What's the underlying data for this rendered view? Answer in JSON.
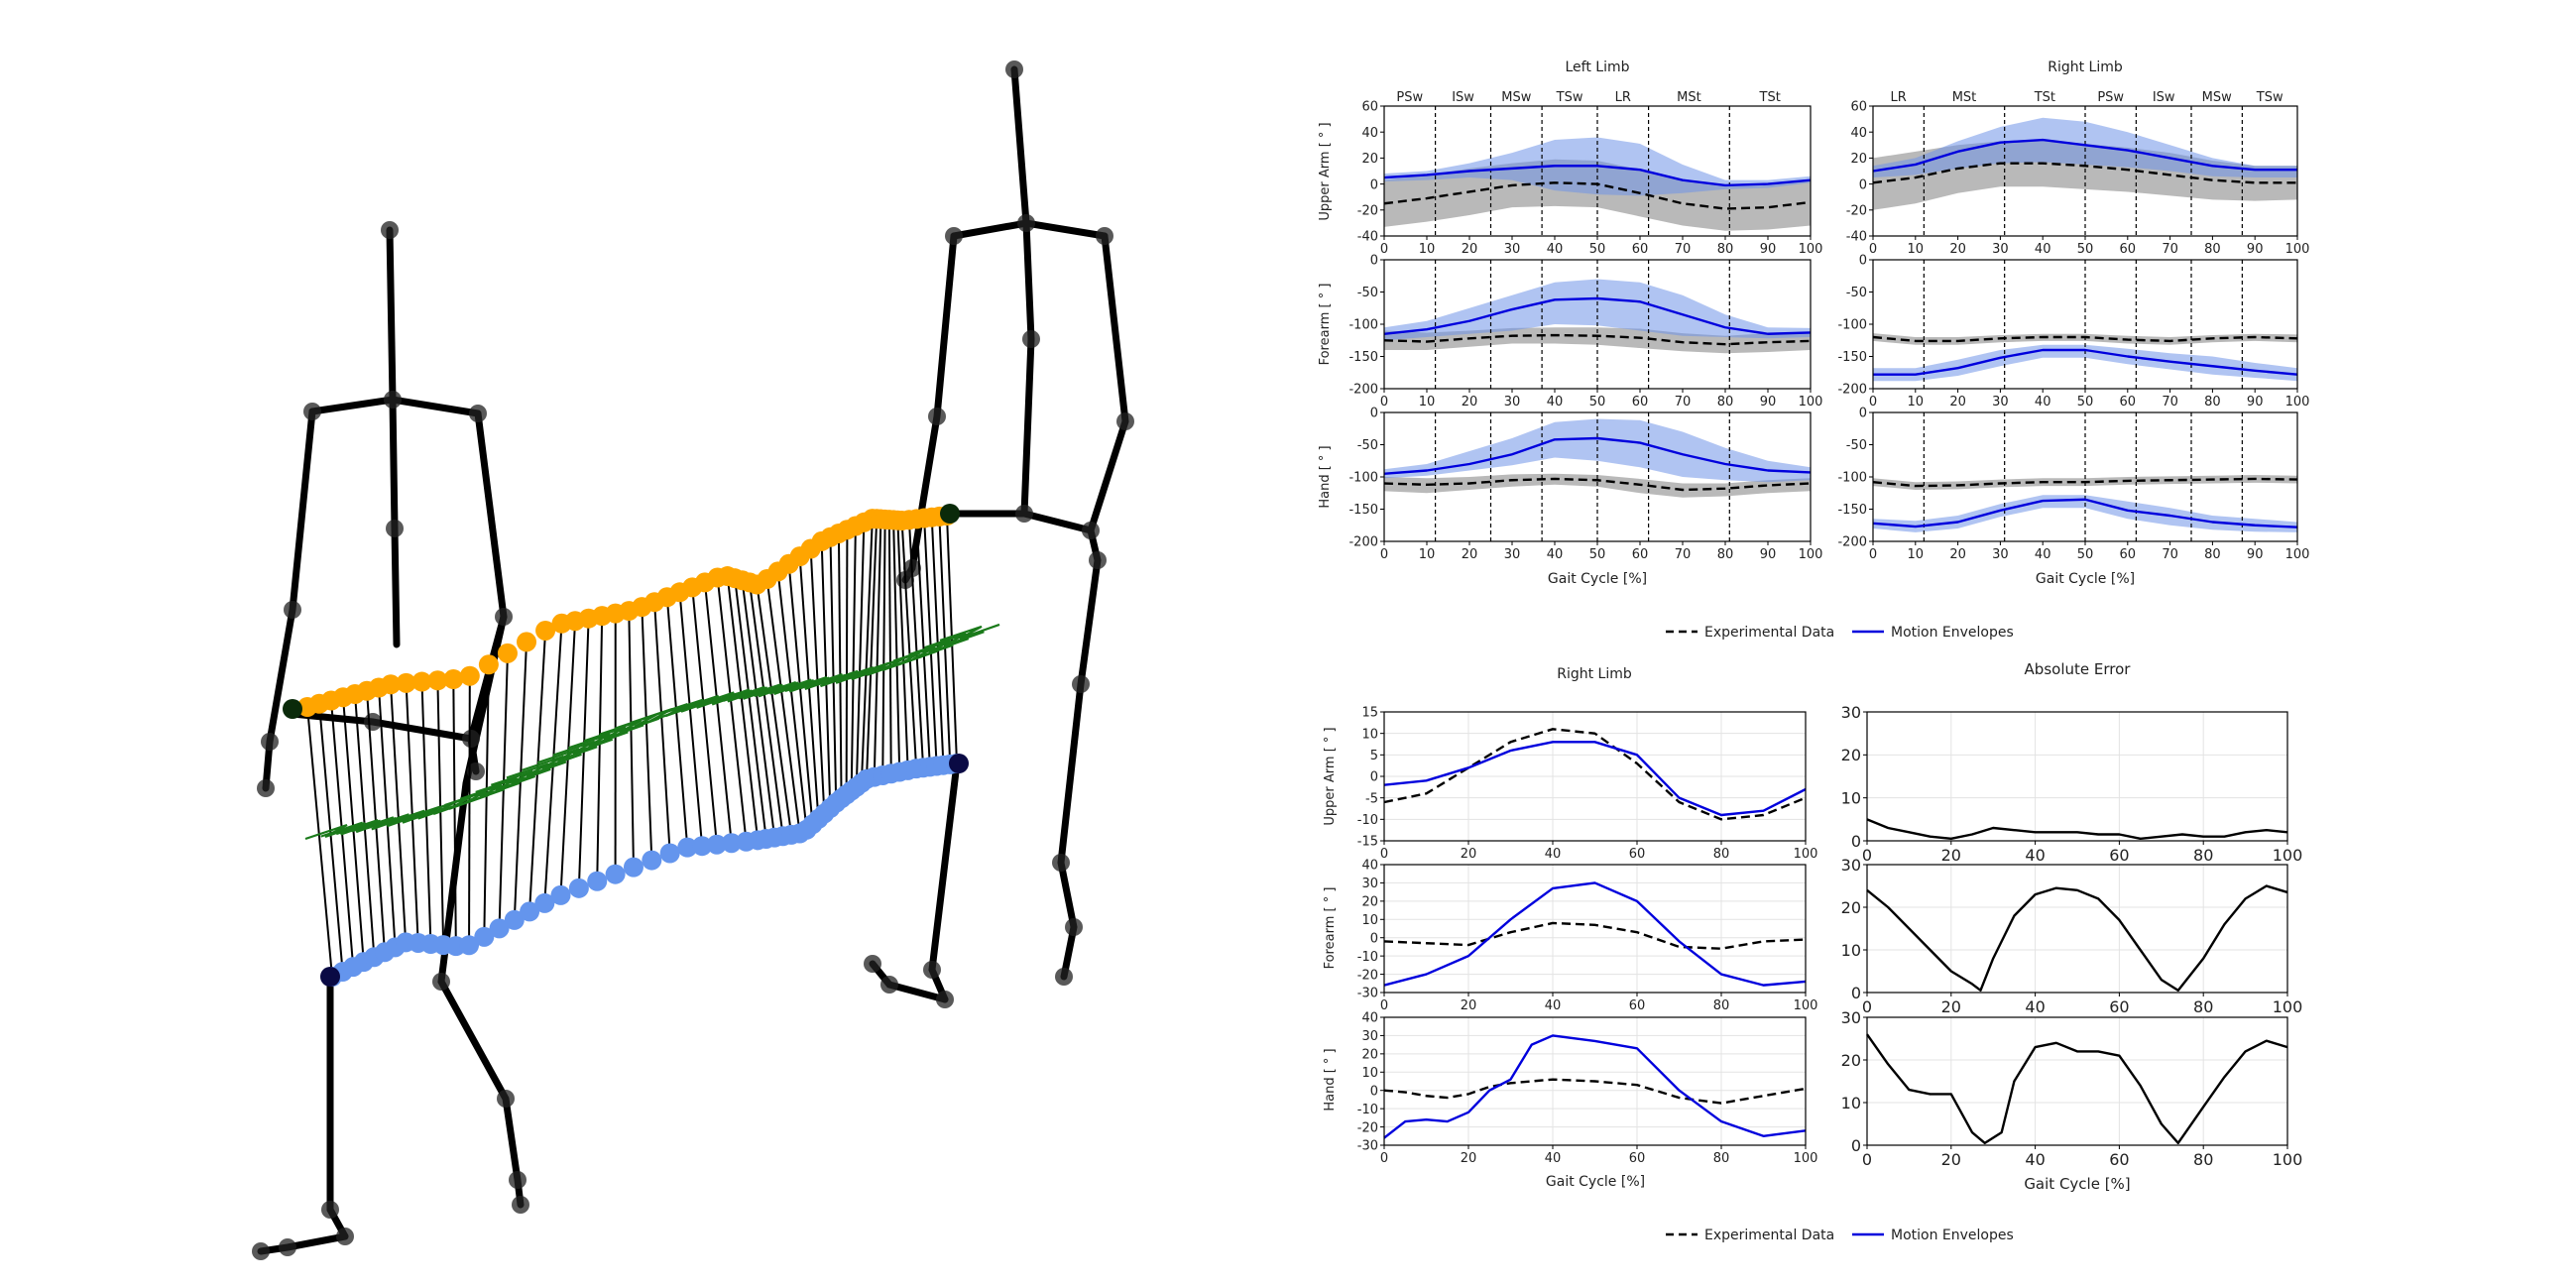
{
  "colors": {
    "experimental": "#000000",
    "envelope_line": "#0000dd",
    "envelope_band": "#6f93e8",
    "experimental_band": "#8a8a8a",
    "skeleton": "#000000",
    "upper_markers": "#ffa500",
    "lower_markers": "#6495ed",
    "connector_surface": "#1a7a1a",
    "grid": "#e3e3e3"
  },
  "top_panel": {
    "left_title": "Left Limb",
    "right_title": "Right Limb",
    "left_phases": {
      "labels": [
        "PSw",
        "ISw",
        "MSw",
        "TSw",
        "LR",
        "MSt",
        "TSt"
      ],
      "boundaries": [
        12,
        25,
        37,
        50,
        62,
        81
      ]
    },
    "right_phases": {
      "labels": [
        "LR",
        "MSt",
        "TSt",
        "PSw",
        "ISw",
        "MSw",
        "TSw"
      ],
      "boundaries": [
        12,
        31,
        50,
        62,
        75,
        87
      ]
    },
    "xlabel": "Gait Cycle [%]",
    "xlim": [
      0,
      100
    ],
    "xticks": [
      0,
      10,
      20,
      30,
      40,
      50,
      60,
      70,
      80,
      90,
      100
    ],
    "rows": [
      {
        "ylabel": "Upper Arm [ ° ]",
        "ylim": [
          -40,
          60
        ],
        "yticks": [
          -40,
          -20,
          0,
          20,
          40,
          60
        ]
      },
      {
        "ylabel": "Forearm [ ° ]",
        "ylim": [
          -200,
          0
        ],
        "yticks": [
          -200,
          -150,
          -100,
          -50,
          0
        ]
      },
      {
        "ylabel": "Hand [ ° ]",
        "ylim": [
          -200,
          0
        ],
        "yticks": [
          -200,
          -150,
          -100,
          -50,
          0
        ]
      }
    ],
    "legend": {
      "experimental": "Experimental Data",
      "envelopes": "Motion Envelopes"
    }
  },
  "bottom_panel": {
    "left_title": "Right Limb",
    "right_title": "Absolute Error",
    "xlabel": "Gait Cycle [%]",
    "xlim": [
      0,
      100
    ],
    "xticks": [
      0,
      20,
      40,
      60,
      80,
      100
    ],
    "rows": [
      {
        "ylabel": "Upper Arm [ ° ]",
        "ylim": [
          -15,
          15
        ],
        "yticks": [
          -15,
          -10,
          -5,
          0,
          5,
          10,
          15
        ]
      },
      {
        "ylabel": "Forearm [ ° ]",
        "ylim": [
          -30,
          40
        ],
        "yticks": [
          -30,
          -20,
          -10,
          0,
          10,
          20,
          30,
          40
        ]
      },
      {
        "ylabel": "Hand [ ° ]",
        "ylim": [
          -30,
          40
        ],
        "yticks": [
          -30,
          -20,
          -10,
          0,
          10,
          20,
          30,
          40
        ]
      }
    ],
    "error_ylim": [
      0,
      30
    ],
    "error_yticks": [
      0,
      10,
      20,
      30
    ],
    "legend": {
      "experimental": "Experimental Data",
      "envelopes": "Motion Envelopes"
    }
  },
  "chart_data": [
    {
      "type": "line",
      "title": "Left Limb",
      "ylabel": "Upper Arm [ ° ]",
      "xlabel": "",
      "ylim": [
        -40,
        60
      ],
      "x": [
        0,
        10,
        20,
        30,
        40,
        50,
        60,
        70,
        80,
        90,
        100
      ],
      "series": [
        {
          "name": "Experimental Data",
          "values": [
            -15,
            -11,
            -6,
            -1,
            1,
            0,
            -7,
            -15,
            -19,
            -18,
            -14
          ],
          "band_lower": [
            -33,
            -29,
            -24,
            -18,
            -17,
            -18,
            -25,
            -32,
            -36,
            -35,
            -32
          ],
          "band_upper": [
            3,
            7,
            12,
            16,
            19,
            18,
            11,
            2,
            -2,
            -1,
            4
          ]
        },
        {
          "name": "Motion Envelopes",
          "values": [
            5,
            7,
            10,
            12,
            14,
            14,
            11,
            3,
            -1,
            0,
            3
          ],
          "band_lower": [
            2,
            3,
            5,
            3,
            -5,
            -8,
            -9,
            -7,
            -4,
            -3,
            1
          ],
          "band_upper": [
            8,
            10,
            16,
            24,
            34,
            36,
            31,
            15,
            3,
            3,
            6
          ]
        }
      ]
    },
    {
      "type": "line",
      "title": "Left Limb",
      "ylabel": "Forearm [ ° ]",
      "xlabel": "",
      "ylim": [
        -200,
        0
      ],
      "x": [
        0,
        10,
        20,
        30,
        40,
        50,
        60,
        70,
        80,
        90,
        100
      ],
      "series": [
        {
          "name": "Experimental Data",
          "values": [
            -125,
            -127,
            -122,
            -118,
            -117,
            -118,
            -121,
            -128,
            -131,
            -128,
            -126
          ],
          "band_lower": [
            -140,
            -140,
            -135,
            -130,
            -130,
            -132,
            -137,
            -142,
            -145,
            -143,
            -140
          ],
          "band_upper": [
            -110,
            -113,
            -110,
            -106,
            -105,
            -105,
            -107,
            -114,
            -118,
            -114,
            -112
          ]
        },
        {
          "name": "Motion Envelopes",
          "values": [
            -115,
            -108,
            -95,
            -77,
            -62,
            -60,
            -65,
            -85,
            -105,
            -115,
            -113
          ],
          "band_lower": [
            -125,
            -120,
            -115,
            -110,
            -100,
            -102,
            -110,
            -118,
            -120,
            -122,
            -120
          ],
          "band_upper": [
            -105,
            -95,
            -75,
            -55,
            -35,
            -30,
            -35,
            -55,
            -85,
            -105,
            -106
          ]
        }
      ]
    },
    {
      "type": "line",
      "title": "Left Limb",
      "ylabel": "Hand [ ° ]",
      "xlabel": "Gait Cycle [%]",
      "ylim": [
        -200,
        0
      ],
      "x": [
        0,
        10,
        20,
        30,
        40,
        50,
        60,
        70,
        80,
        90,
        100
      ],
      "series": [
        {
          "name": "Experimental Data",
          "values": [
            -110,
            -112,
            -110,
            -105,
            -103,
            -105,
            -112,
            -120,
            -118,
            -113,
            -110
          ],
          "band_lower": [
            -100,
            -102,
            -100,
            -96,
            -95,
            -97,
            -103,
            -110,
            -110,
            -105,
            -102
          ],
          "band_upper": [
            -122,
            -125,
            -120,
            -115,
            -112,
            -115,
            -125,
            -132,
            -130,
            -125,
            -122
          ]
        },
        {
          "name": "Motion Envelopes",
          "values": [
            -95,
            -90,
            -80,
            -65,
            -42,
            -40,
            -47,
            -65,
            -80,
            -90,
            -93
          ],
          "band_lower": [
            -102,
            -98,
            -90,
            -82,
            -70,
            -75,
            -85,
            -100,
            -105,
            -108,
            -105
          ],
          "band_upper": [
            -88,
            -80,
            -60,
            -40,
            -15,
            -10,
            -12,
            -30,
            -55,
            -75,
            -85
          ]
        }
      ]
    },
    {
      "type": "line",
      "title": "Right Limb",
      "ylabel": "Upper Arm [ ° ]",
      "xlabel": "",
      "ylim": [
        -40,
        60
      ],
      "x": [
        0,
        10,
        20,
        30,
        40,
        50,
        60,
        70,
        80,
        90,
        100
      ],
      "series": [
        {
          "name": "Experimental Data",
          "values": [
            1,
            5,
            12,
            16,
            16,
            14,
            11,
            7,
            3,
            1,
            1
          ],
          "band_lower": [
            -20,
            -15,
            -7,
            -2,
            -2,
            -4,
            -6,
            -9,
            -12,
            -13,
            -12
          ],
          "band_upper": [
            20,
            25,
            30,
            33,
            33,
            31,
            28,
            24,
            18,
            14,
            14
          ]
        },
        {
          "name": "Motion Envelopes",
          "values": [
            10,
            15,
            25,
            32,
            34,
            30,
            26,
            20,
            14,
            11,
            11
          ],
          "band_lower": [
            5,
            7,
            12,
            16,
            17,
            15,
            13,
            10,
            6,
            5,
            5
          ],
          "band_upper": [
            14,
            20,
            33,
            44,
            51,
            48,
            40,
            30,
            20,
            14,
            14
          ]
        }
      ]
    },
    {
      "type": "line",
      "title": "Right Limb",
      "ylabel": "Forearm [ ° ]",
      "xlabel": "",
      "ylim": [
        -200,
        0
      ],
      "x": [
        0,
        10,
        20,
        30,
        40,
        50,
        60,
        70,
        80,
        90,
        100
      ],
      "series": [
        {
          "name": "Experimental Data",
          "values": [
            -120,
            -126,
            -126,
            -122,
            -120,
            -120,
            -124,
            -126,
            -122,
            -120,
            -122
          ],
          "band_lower": [
            -114,
            -120,
            -120,
            -117,
            -115,
            -115,
            -118,
            -120,
            -117,
            -115,
            -116
          ],
          "band_upper": [
            -126,
            -132,
            -132,
            -128,
            -126,
            -126,
            -130,
            -132,
            -128,
            -126,
            -128
          ]
        },
        {
          "name": "Motion Envelopes",
          "values": [
            -178,
            -178,
            -168,
            -152,
            -140,
            -140,
            -150,
            -158,
            -165,
            -172,
            -178
          ],
          "band_lower": [
            -168,
            -168,
            -155,
            -140,
            -132,
            -132,
            -138,
            -145,
            -150,
            -160,
            -168
          ],
          "band_upper": [
            -188,
            -188,
            -180,
            -165,
            -152,
            -152,
            -162,
            -170,
            -178,
            -183,
            -188
          ]
        }
      ]
    },
    {
      "type": "line",
      "title": "Right Limb",
      "ylabel": "Hand [ ° ]",
      "xlabel": "Gait Cycle [%]",
      "ylim": [
        -200,
        0
      ],
      "x": [
        0,
        10,
        20,
        30,
        40,
        50,
        60,
        70,
        80,
        90,
        100
      ],
      "series": [
        {
          "name": "Experimental Data",
          "values": [
            -108,
            -114,
            -113,
            -110,
            -108,
            -108,
            -106,
            -105,
            -104,
            -103,
            -104
          ],
          "band_lower": [
            -102,
            -108,
            -107,
            -104,
            -102,
            -102,
            -100,
            -99,
            -98,
            -97,
            -98
          ],
          "band_upper": [
            -114,
            -120,
            -119,
            -116,
            -114,
            -114,
            -112,
            -111,
            -110,
            -109,
            -110
          ]
        },
        {
          "name": "Motion Envelopes",
          "values": [
            -172,
            -177,
            -170,
            -152,
            -137,
            -135,
            -152,
            -160,
            -170,
            -175,
            -178
          ],
          "band_lower": [
            -165,
            -168,
            -160,
            -142,
            -128,
            -128,
            -138,
            -148,
            -160,
            -165,
            -170
          ],
          "band_upper": [
            -180,
            -186,
            -180,
            -162,
            -148,
            -148,
            -165,
            -175,
            -182,
            -185,
            -186
          ]
        }
      ]
    },
    {
      "type": "line",
      "title": "Right Limb",
      "ylabel": "Upper Arm [ ° ]",
      "xlabel": "",
      "ylim": [
        -15,
        15
      ],
      "x": [
        0,
        10,
        20,
        30,
        40,
        50,
        60,
        70,
        80,
        90,
        100
      ],
      "series": [
        {
          "name": "Experimental Data",
          "values": [
            -6,
            -4,
            2,
            8,
            11,
            10,
            3,
            -6,
            -10,
            -9,
            -5
          ]
        },
        {
          "name": "Motion Envelopes",
          "values": [
            -2,
            -1,
            2,
            6,
            8,
            8,
            5,
            -5,
            -9,
            -8,
            -3
          ]
        }
      ]
    },
    {
      "type": "line",
      "title": "Right Limb",
      "ylabel": "Forearm [ ° ]",
      "xlabel": "",
      "ylim": [
        -30,
        40
      ],
      "x": [
        0,
        10,
        20,
        30,
        40,
        50,
        60,
        70,
        80,
        90,
        100
      ],
      "series": [
        {
          "name": "Experimental Data",
          "values": [
            -2,
            -3,
            -4,
            3,
            8,
            7,
            3,
            -5,
            -6,
            -2,
            -1
          ]
        },
        {
          "name": "Motion Envelopes",
          "values": [
            -26,
            -20,
            -10,
            10,
            27,
            30,
            20,
            -2,
            -20,
            -26,
            -24
          ]
        }
      ]
    },
    {
      "type": "line",
      "title": "Right Limb",
      "ylabel": "Hand [ ° ]",
      "xlabel": "Gait Cycle [%]",
      "ylim": [
        -30,
        40
      ],
      "x": [
        0,
        5,
        10,
        15,
        20,
        25,
        30,
        35,
        40,
        50,
        60,
        70,
        80,
        90,
        100
      ],
      "series": [
        {
          "name": "Experimental Data",
          "values": [
            0,
            -1,
            -3,
            -4,
            -2,
            2,
            4,
            5,
            6,
            5,
            3,
            -4,
            -7,
            -3,
            1
          ]
        },
        {
          "name": "Motion Envelopes",
          "values": [
            -26,
            -17,
            -16,
            -17,
            -12,
            0,
            6,
            25,
            30,
            27,
            23,
            0,
            -17,
            -25,
            -22
          ]
        }
      ]
    },
    {
      "type": "line",
      "title": "Absolute Error",
      "ylabel": "",
      "xlabel": "",
      "ylim": [
        0,
        30
      ],
      "x": [
        0,
        5,
        10,
        15,
        20,
        25,
        30,
        35,
        40,
        45,
        50,
        55,
        60,
        65,
        70,
        75,
        80,
        85,
        90,
        95,
        100
      ],
      "series": [
        {
          "name": "",
          "values": [
            5,
            3,
            2,
            1,
            0.5,
            1.5,
            3,
            2.5,
            2,
            2,
            2,
            1.5,
            1.5,
            0.5,
            1,
            1.5,
            1,
            1,
            2,
            2.5,
            2
          ]
        }
      ]
    },
    {
      "type": "line",
      "title": "Absolute Error",
      "ylabel": "",
      "xlabel": "",
      "ylim": [
        0,
        30
      ],
      "x": [
        0,
        5,
        10,
        15,
        20,
        25,
        27,
        30,
        35,
        40,
        45,
        50,
        55,
        60,
        65,
        70,
        74,
        80,
        85,
        90,
        95,
        100
      ],
      "series": [
        {
          "name": "",
          "values": [
            24,
            20,
            15,
            10,
            5,
            2,
            0.5,
            8,
            18,
            23,
            24.5,
            24,
            22,
            17,
            10,
            3,
            0.5,
            8,
            16,
            22,
            25,
            23.5
          ]
        }
      ]
    },
    {
      "type": "line",
      "title": "Absolute Error",
      "ylabel": "",
      "xlabel": "Gait Cycle [%]",
      "ylim": [
        0,
        30
      ],
      "x": [
        0,
        5,
        10,
        15,
        20,
        25,
        28,
        32,
        35,
        40,
        45,
        50,
        55,
        60,
        65,
        70,
        74,
        80,
        85,
        90,
        95,
        100
      ],
      "series": [
        {
          "name": "",
          "values": [
            26,
            19,
            13,
            12,
            12,
            3,
            0.5,
            3,
            15,
            23,
            24,
            22,
            22,
            21,
            14,
            5,
            0.5,
            9,
            16,
            22,
            24.5,
            23
          ]
        }
      ]
    }
  ]
}
